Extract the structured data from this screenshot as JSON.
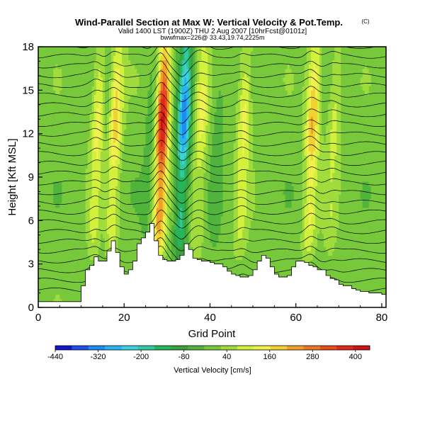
{
  "chart_data": {
    "type": "heatmap",
    "title": "Wind-Parallel Section at Max W: Vertical Velocity & Pot.Temp.",
    "title_mark": "(C)",
    "subtitle1": "Valid 1400 LST (1900Z) THU 2 Aug 2007 [10hrFcst@0101z]",
    "subtitle2": "bwwfmax=226@ 33.43,19.74,2225m",
    "xlabel": "Grid Point",
    "ylabel": "Height [Kft MSL]",
    "xlim": [
      0,
      81
    ],
    "ylim": [
      0,
      18
    ],
    "x_ticks": [
      "0",
      "20",
      "40",
      "60",
      "80"
    ],
    "y_ticks": [
      "0",
      "3",
      "6",
      "9",
      "12",
      "15",
      "18"
    ],
    "colorbar": {
      "label": "Vertical Velocity [cm/s]",
      "range": [
        -440,
        440
      ],
      "tick_labels": [
        "-440",
        "-320",
        "-200",
        "-80",
        "40",
        "160",
        "280",
        "400"
      ],
      "colors": [
        "#1414c8",
        "#1e50e6",
        "#1e8cf0",
        "#28b4f0",
        "#3cd2dc",
        "#32c8a0",
        "#28b45a",
        "#3ca03c",
        "#50b43c",
        "#78c83c",
        "#a0dc3c",
        "#d2f03c",
        "#f0f050",
        "#f0d232",
        "#f0a028",
        "#e87828",
        "#e64b1e",
        "#dc281e",
        "#c81414"
      ]
    },
    "updraft_bands": [
      {
        "x": 13.5,
        "w": 150
      },
      {
        "x": 17.5,
        "w": 190
      },
      {
        "x": 28.5,
        "w": 420
      },
      {
        "x": 37.5,
        "w": 130
      },
      {
        "x": 47.5,
        "w": 140
      },
      {
        "x": 63.5,
        "w": 220
      },
      {
        "x": 68.5,
        "w": 90
      }
    ],
    "downdraft_bands": [
      {
        "x": 33.5,
        "w": -330
      },
      {
        "x": 15.5,
        "w": -40
      },
      {
        "x": 26,
        "w": -60
      },
      {
        "x": 41.5,
        "w": -50
      }
    ],
    "terrain_kft": [
      0.4,
      0.4,
      0.4,
      0.4,
      0.4,
      0.4,
      0.4,
      0.4,
      0.4,
      0.4,
      1.5,
      2.6,
      2.9,
      3.5,
      3.2,
      3.2,
      3.9,
      4.6,
      3.8,
      2.8,
      2.3,
      2.6,
      3.2,
      4.4,
      4.8,
      5.2,
      5.8,
      4.6,
      3.6,
      3.3,
      3.2,
      3.2,
      3.3,
      3.6,
      4.4,
      4.0,
      3.4,
      3.3,
      3.2,
      3.2,
      3.1,
      3.0,
      3.0,
      2.8,
      2.5,
      2.3,
      2.2,
      2.1,
      2.1,
      2.2,
      2.6,
      3.2,
      3.6,
      3.4,
      2.8,
      2.3,
      2.1,
      2.1,
      2.2,
      2.8,
      3.2,
      3.2,
      3.1,
      2.9,
      2.8,
      2.6,
      2.6,
      2.2,
      2.0,
      1.9,
      1.6,
      1.5,
      1.5,
      1.3,
      1.2,
      1.1,
      1.1,
      1.0,
      1.0,
      1.0,
      0.9,
      0.8
    ],
    "theta_contours": 26,
    "grid": false
  }
}
